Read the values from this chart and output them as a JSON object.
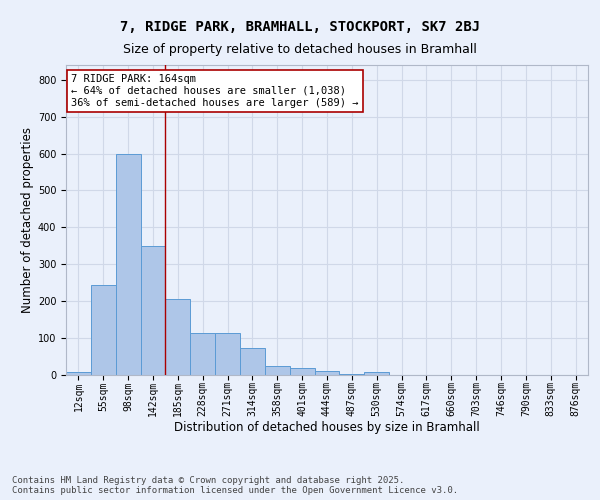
{
  "title_line1": "7, RIDGE PARK, BRAMHALL, STOCKPORT, SK7 2BJ",
  "title_line2": "Size of property relative to detached houses in Bramhall",
  "xlabel": "Distribution of detached houses by size in Bramhall",
  "ylabel": "Number of detached properties",
  "bar_labels": [
    "12sqm",
    "55sqm",
    "98sqm",
    "142sqm",
    "185sqm",
    "228sqm",
    "271sqm",
    "314sqm",
    "358sqm",
    "401sqm",
    "444sqm",
    "487sqm",
    "530sqm",
    "574sqm",
    "617sqm",
    "660sqm",
    "703sqm",
    "746sqm",
    "790sqm",
    "833sqm",
    "876sqm"
  ],
  "bar_values": [
    8,
    243,
    598,
    350,
    207,
    115,
    115,
    72,
    25,
    18,
    10,
    3,
    8,
    0,
    0,
    0,
    0,
    0,
    0,
    0,
    0
  ],
  "bar_width": 1.0,
  "bar_color": "#aec6e8",
  "bar_edge_color": "#5b9bd5",
  "grid_color": "#d0d8e8",
  "background_color": "#eaf0fb",
  "vline_x": 3.5,
  "vline_color": "#aa0000",
  "annotation_text": "7 RIDGE PARK: 164sqm\n← 64% of detached houses are smaller (1,038)\n36% of semi-detached houses are larger (589) →",
  "annotation_box_color": "#ffffff",
  "annotation_box_edge": "#aa0000",
  "ylim": [
    0,
    840
  ],
  "yticks": [
    0,
    100,
    200,
    300,
    400,
    500,
    600,
    700,
    800
  ],
  "footer_line1": "Contains HM Land Registry data © Crown copyright and database right 2025.",
  "footer_line2": "Contains public sector information licensed under the Open Government Licence v3.0.",
  "title_fontsize": 10,
  "subtitle_fontsize": 9,
  "axis_label_fontsize": 8.5,
  "tick_fontsize": 7,
  "annotation_fontsize": 7.5,
  "footer_fontsize": 6.5
}
